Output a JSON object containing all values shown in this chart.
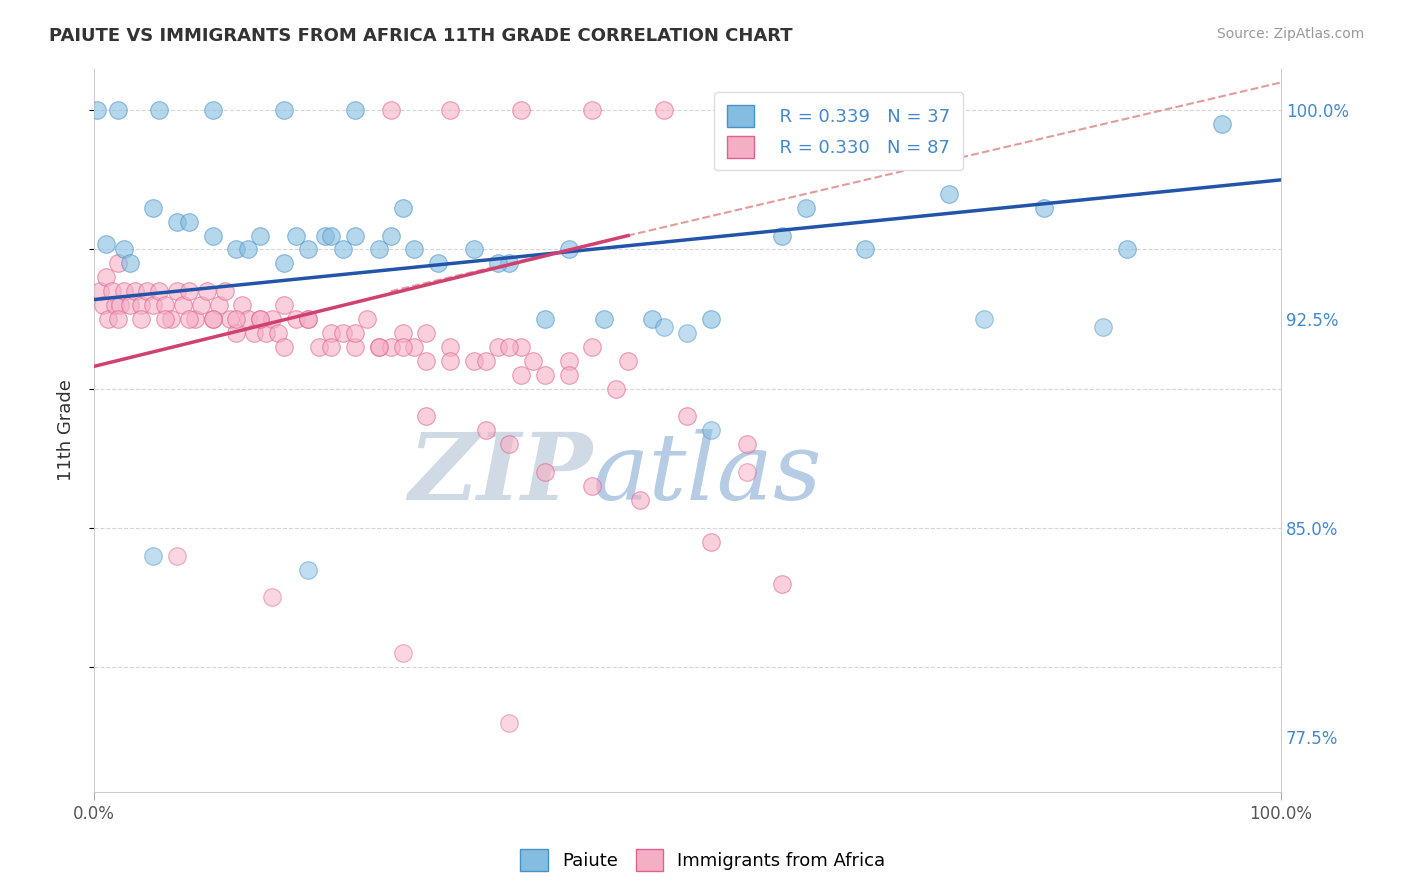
{
  "title": "PAIUTE VS IMMIGRANTS FROM AFRICA 11TH GRADE CORRELATION CHART",
  "source": "Source: ZipAtlas.com",
  "ylabel": "11th Grade",
  "xlim": [
    0.0,
    100.0
  ],
  "ylim": [
    75.5,
    101.5
  ],
  "yticks": [
    77.5,
    85.0,
    92.5,
    100.0
  ],
  "ytick_labels": [
    "77.5%",
    "85.0%",
    "92.5%",
    "100.0%"
  ],
  "xtick_labels": [
    "0.0%",
    "100.0%"
  ],
  "legend_blue_r": "R = 0.339",
  "legend_blue_n": "N = 37",
  "legend_pink_r": "R = 0.330",
  "legend_pink_n": "N = 87",
  "blue_color": "#85bde0",
  "pink_color": "#f5afc5",
  "blue_edge_color": "#4a90c8",
  "pink_edge_color": "#e06090",
  "blue_line_color": "#2255aa",
  "pink_line_color": "#d04070",
  "dashed_line_color": "#e09090",
  "watermark": "ZIPatlas",
  "watermark_color": "#d0dce8",
  "blue_line_start_y": 93.2,
  "blue_line_end_y": 97.5,
  "pink_line_start_x": 0,
  "pink_line_start_y": 90.8,
  "pink_line_end_x": 45,
  "pink_line_end_y": 95.5,
  "dash_start_x": 25,
  "dash_start_y": 93.5,
  "dash_end_x": 100,
  "dash_end_y": 101.0,
  "blue_x": [
    1.0,
    2.5,
    5.0,
    7.0,
    10.0,
    12.0,
    14.0,
    16.0,
    17.0,
    18.0,
    19.5,
    21.0,
    22.0,
    24.0,
    25.0,
    27.0,
    29.0,
    32.0,
    35.0,
    38.0,
    40.0,
    43.0,
    47.0,
    52.0,
    58.0,
    65.0,
    72.0,
    80.0,
    87.0,
    95.0,
    3.0,
    8.0,
    13.0,
    20.0,
    26.0,
    34.0,
    60.0
  ],
  "blue_y": [
    95.2,
    95.0,
    96.5,
    96.0,
    95.5,
    95.0,
    95.5,
    94.5,
    95.5,
    95.0,
    95.5,
    95.0,
    95.5,
    95.0,
    95.5,
    95.0,
    94.5,
    95.0,
    94.5,
    92.5,
    95.0,
    92.5,
    92.5,
    92.5,
    95.5,
    95.0,
    97.0,
    96.5,
    95.0,
    99.5,
    94.5,
    96.0,
    95.0,
    95.5,
    96.5,
    94.5,
    96.5
  ],
  "pink_x": [
    0.5,
    0.8,
    1.0,
    1.2,
    1.5,
    1.8,
    2.0,
    2.2,
    2.5,
    3.0,
    3.5,
    4.0,
    4.5,
    5.0,
    5.5,
    6.0,
    6.5,
    7.0,
    7.5,
    8.0,
    8.5,
    9.0,
    9.5,
    10.0,
    10.5,
    11.0,
    11.5,
    12.0,
    12.5,
    13.0,
    13.5,
    14.0,
    14.5,
    15.0,
    15.5,
    16.0,
    17.0,
    18.0,
    19.0,
    20.0,
    21.0,
    22.0,
    23.0,
    24.0,
    25.0,
    26.0,
    27.0,
    28.0,
    30.0,
    32.0,
    34.0,
    36.0,
    38.0,
    40.0,
    42.0,
    45.0,
    35.0,
    37.0,
    2.0,
    4.0,
    6.0,
    8.0,
    10.0,
    12.0,
    14.0,
    16.0,
    18.0,
    20.0,
    22.0,
    24.0,
    26.0,
    28.0,
    30.0,
    33.0,
    36.0,
    40.0,
    44.0,
    50.0,
    55.0,
    28.0,
    33.0,
    35.0,
    38.0,
    42.0,
    46.0,
    52.0,
    58.0
  ],
  "pink_y": [
    93.5,
    93.0,
    94.0,
    92.5,
    93.5,
    93.0,
    94.5,
    93.0,
    93.5,
    93.0,
    93.5,
    93.0,
    93.5,
    93.0,
    93.5,
    93.0,
    92.5,
    93.5,
    93.0,
    93.5,
    92.5,
    93.0,
    93.5,
    92.5,
    93.0,
    93.5,
    92.5,
    92.0,
    93.0,
    92.5,
    92.0,
    92.5,
    92.0,
    92.5,
    92.0,
    93.0,
    92.5,
    92.5,
    91.5,
    92.0,
    92.0,
    91.5,
    92.5,
    91.5,
    91.5,
    92.0,
    91.5,
    92.0,
    91.5,
    91.0,
    91.5,
    91.5,
    90.5,
    91.0,
    91.5,
    91.0,
    91.5,
    91.0,
    92.5,
    92.5,
    92.5,
    92.5,
    92.5,
    92.5,
    92.5,
    91.5,
    92.5,
    91.5,
    92.0,
    91.5,
    91.5,
    91.0,
    91.0,
    91.0,
    90.5,
    90.5,
    90.0,
    89.0,
    88.0,
    89.0,
    88.5,
    88.0,
    87.0,
    86.5,
    86.0,
    84.5,
    83.0
  ],
  "top_blue_x": [
    0.3,
    2.0,
    5.5,
    10.0,
    16.0,
    22.0
  ],
  "top_blue_y": [
    100.0,
    100.0,
    100.0,
    100.0,
    100.0,
    100.0
  ],
  "top_pink_x": [
    25.0,
    30.0,
    36.0,
    42.0,
    48.0,
    55.0,
    62.0
  ],
  "top_pink_y": [
    100.0,
    100.0,
    100.0,
    100.0,
    100.0,
    100.0,
    100.0
  ],
  "isolated_blue_x": [
    5.0,
    18.0,
    48.0,
    50.0,
    52.0,
    75.0,
    85.0
  ],
  "isolated_blue_y": [
    84.0,
    83.5,
    92.2,
    92.0,
    88.5,
    92.5,
    92.2
  ],
  "isolated_pink_x": [
    7.0,
    15.0,
    26.0,
    35.0,
    55.0
  ],
  "isolated_pink_y": [
    84.0,
    82.5,
    80.5,
    78.0,
    87.0
  ]
}
